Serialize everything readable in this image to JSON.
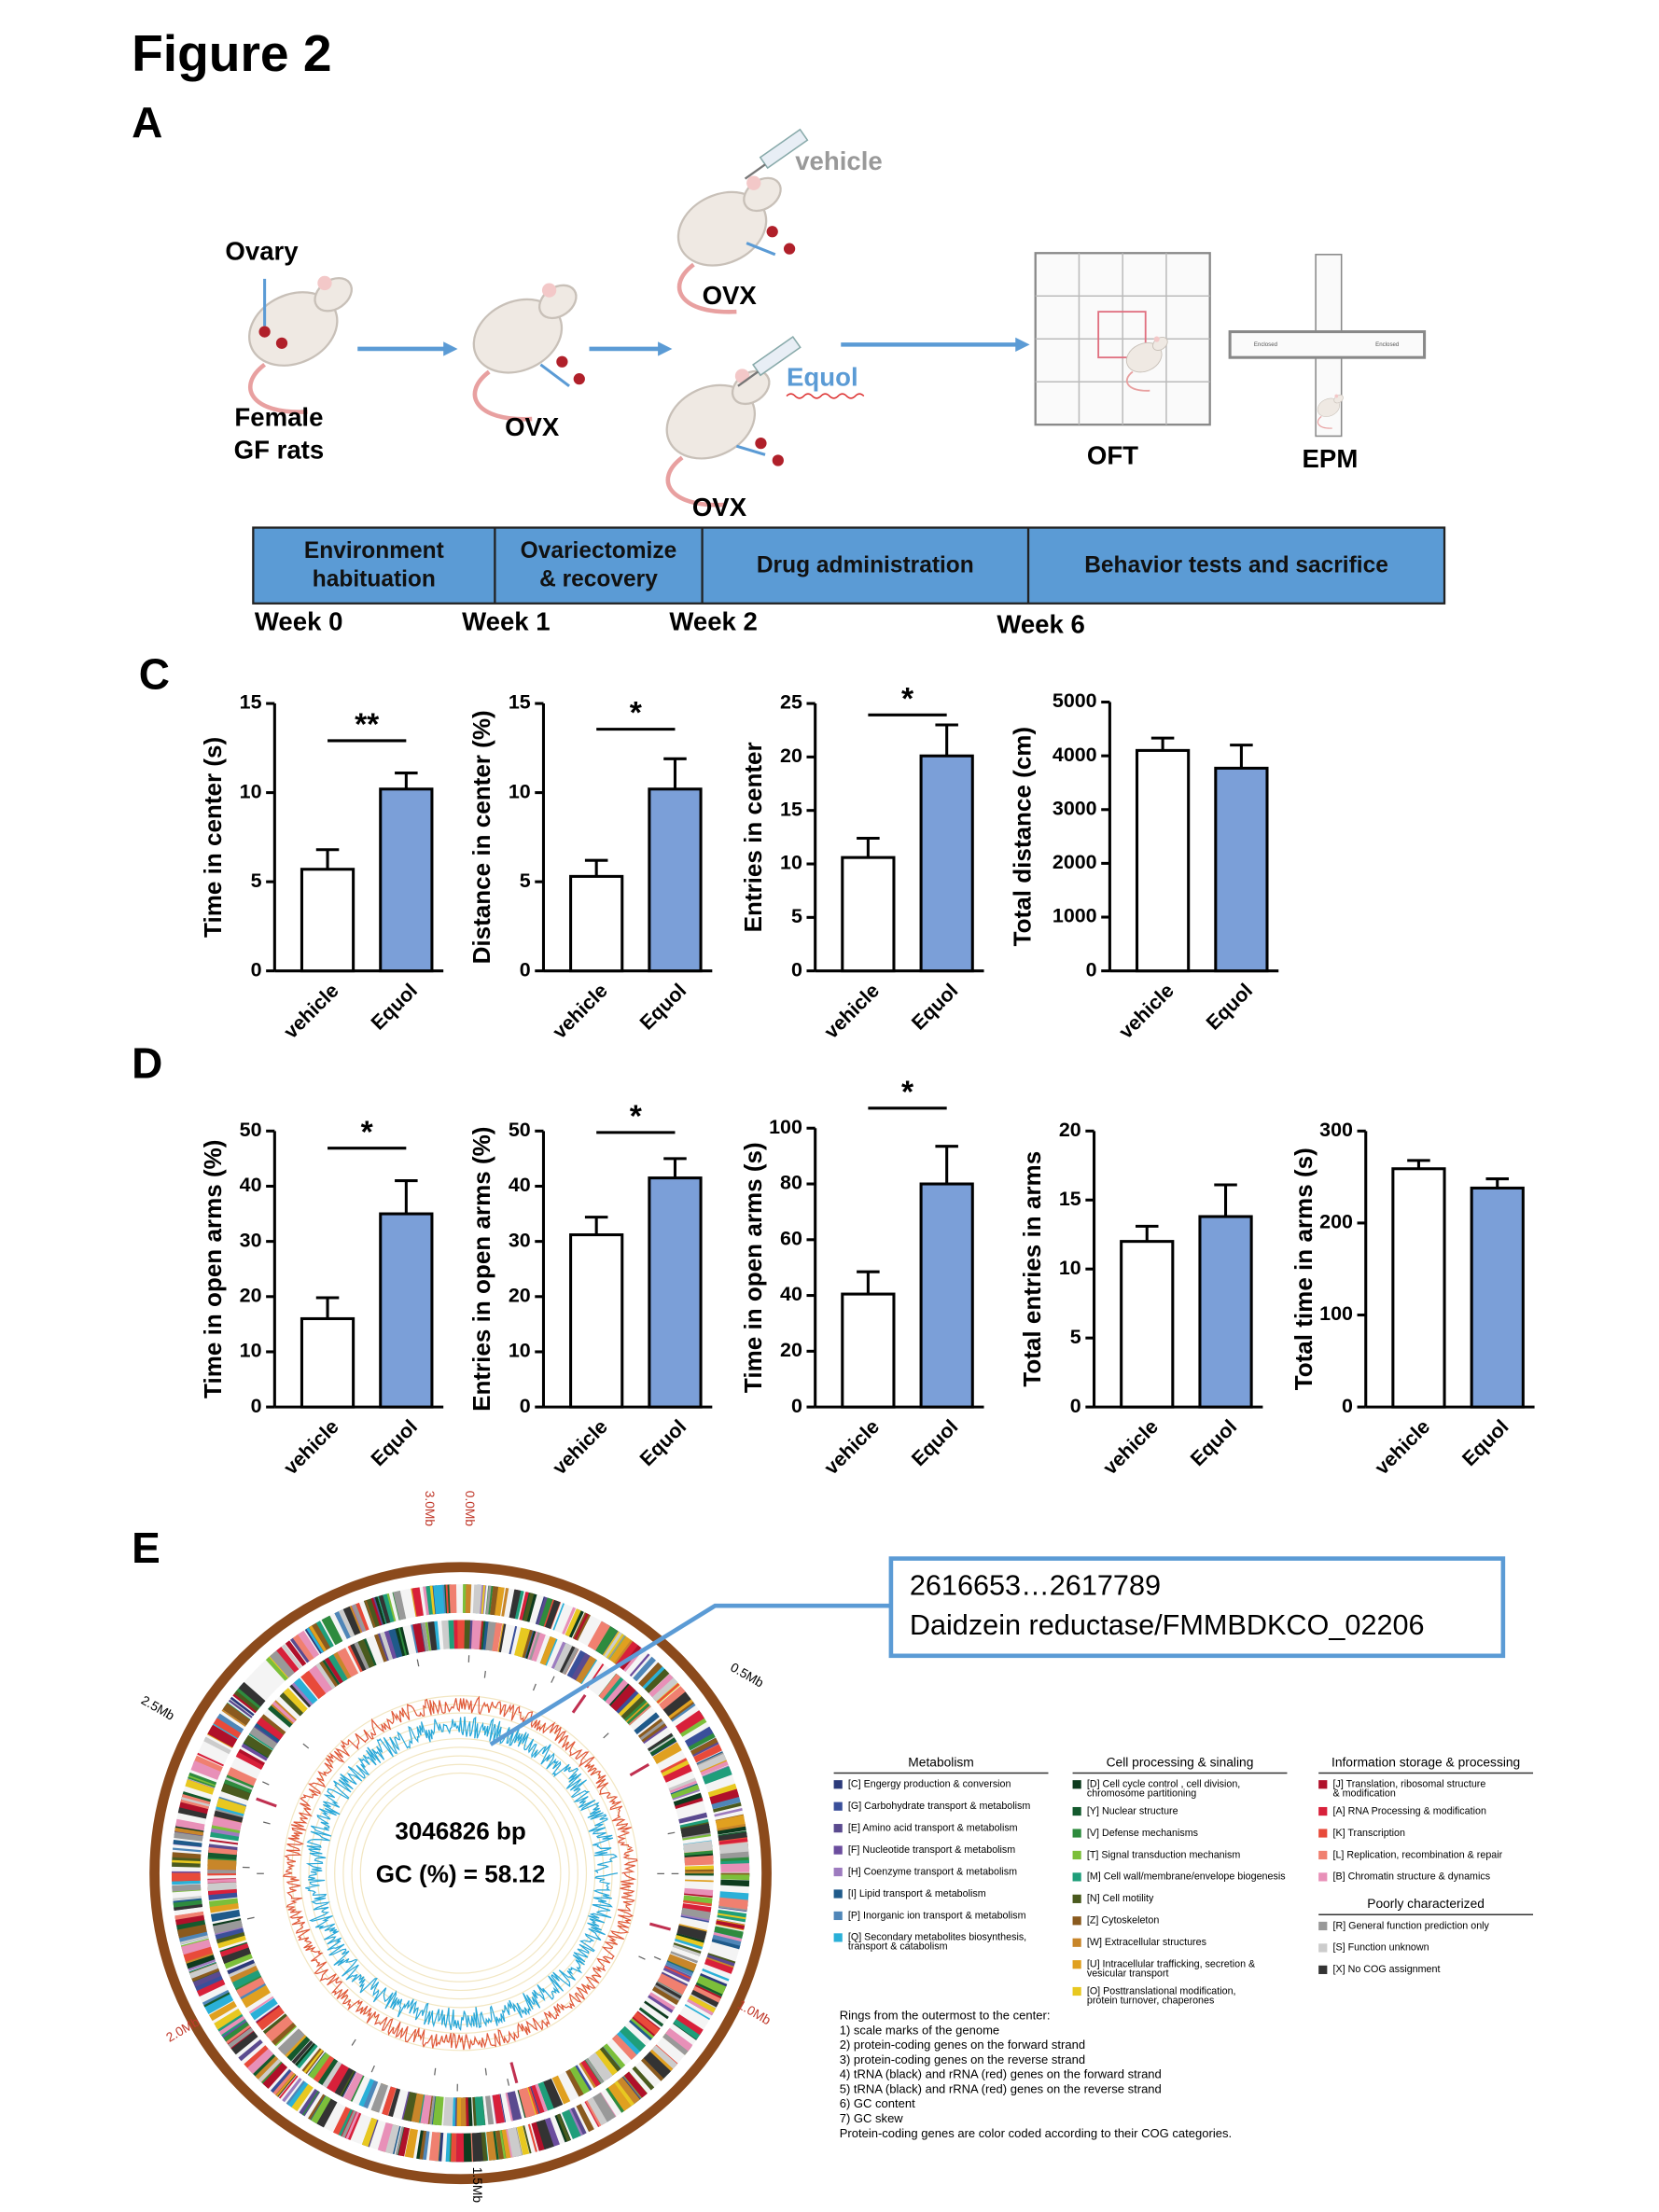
{
  "figure_title": "Figure 2",
  "panel_labels": [
    "A",
    "C",
    "D",
    "E"
  ],
  "diagram": {
    "ovary": "Ovary",
    "female": [
      "Female",
      "GF rats"
    ],
    "ovx": [
      "OVX",
      "OVX",
      "OVX"
    ],
    "vehicle": "vehicle",
    "equol": "Equol",
    "oft": "OFT",
    "epm": "EPM",
    "epm_arms": [
      "Enclosed",
      "Enclosed"
    ]
  },
  "timeline": {
    "phases": [
      [
        "Environment",
        "habituation"
      ],
      [
        "Ovariectomize",
        "& recovery"
      ],
      [
        "Drug administration"
      ],
      [
        "Behavior tests and sacrifice"
      ]
    ],
    "weeks": [
      "Week 0",
      "Week 1",
      "Week 2",
      "Week 6"
    ]
  },
  "chart_data": [
    {
      "type": "bar",
      "ylabel": "Time in center (s)",
      "categories": [
        "vehicle",
        "Equol"
      ],
      "values": [
        5.7,
        10.2
      ],
      "errors": [
        1.1,
        0.9
      ],
      "colors": [
        "#ffffff",
        "#7b9fd8"
      ],
      "ylim": [
        0,
        15
      ],
      "yticks": [
        0,
        5,
        10,
        15
      ],
      "significance": "**"
    },
    {
      "type": "bar",
      "ylabel": "Distance in center (%)",
      "categories": [
        "vehicle",
        "Equol"
      ],
      "values": [
        5.3,
        10.2
      ],
      "errors": [
        0.9,
        1.7
      ],
      "colors": [
        "#ffffff",
        "#7b9fd8"
      ],
      "ylim": [
        0,
        15
      ],
      "yticks": [
        0,
        5,
        10,
        15
      ],
      "significance": "*"
    },
    {
      "type": "bar",
      "ylabel": "Entries in center",
      "categories": [
        "vehicle",
        "Equol"
      ],
      "values": [
        10.6,
        20.1
      ],
      "errors": [
        1.8,
        2.9
      ],
      "colors": [
        "#ffffff",
        "#7b9fd8"
      ],
      "ylim": [
        0,
        25
      ],
      "yticks": [
        0,
        5,
        10,
        15,
        20,
        25
      ],
      "significance": "*"
    },
    {
      "type": "bar",
      "ylabel": "Total distance (cm)",
      "categories": [
        "vehicle",
        "Equol"
      ],
      "values": [
        4100,
        3770
      ],
      "errors": [
        230,
        430
      ],
      "colors": [
        "#ffffff",
        "#7b9fd8"
      ],
      "ylim": [
        0,
        5000
      ],
      "yticks": [
        0,
        1000,
        2000,
        3000,
        4000,
        5000
      ]
    },
    {
      "type": "bar",
      "ylabel": "Time in open arms (%)",
      "categories": [
        "vehicle",
        "Equol"
      ],
      "values": [
        16,
        35
      ],
      "errors": [
        3.8,
        6
      ],
      "colors": [
        "#ffffff",
        "#7b9fd8"
      ],
      "ylim": [
        0,
        50
      ],
      "yticks": [
        0,
        10,
        20,
        30,
        40,
        50
      ],
      "significance": "*"
    },
    {
      "type": "bar",
      "ylabel": "Entries in open arms (%)",
      "categories": [
        "vehicle",
        "Equol"
      ],
      "values": [
        31.2,
        41.5
      ],
      "errors": [
        3.2,
        3.5
      ],
      "colors": [
        "#ffffff",
        "#7b9fd8"
      ],
      "ylim": [
        0,
        50
      ],
      "yticks": [
        0,
        10,
        20,
        30,
        40,
        50
      ],
      "significance": "*"
    },
    {
      "type": "bar",
      "ylabel": "Time in open arms (s)",
      "categories": [
        "vehicle",
        "Equol"
      ],
      "values": [
        40.5,
        80
      ],
      "errors": [
        8,
        13.5
      ],
      "colors": [
        "#ffffff",
        "#7b9fd8"
      ],
      "ylim": [
        0,
        100
      ],
      "yticks": [
        0,
        20,
        40,
        60,
        80,
        100
      ],
      "significance": "*"
    },
    {
      "type": "bar",
      "ylabel": "Total  entries in arms",
      "categories": [
        "vehicle",
        "Equol"
      ],
      "values": [
        12,
        13.8
      ],
      "errors": [
        1.1,
        2.3
      ],
      "colors": [
        "#ffffff",
        "#7b9fd8"
      ],
      "ylim": [
        0,
        20
      ],
      "yticks": [
        0,
        5,
        10,
        15,
        20
      ]
    },
    {
      "type": "bar",
      "ylabel": "Total time in arms (s)",
      "categories": [
        "vehicle",
        "Equol"
      ],
      "values": [
        259,
        238
      ],
      "errors": [
        9,
        10
      ],
      "colors": [
        "#ffffff",
        "#7b9fd8"
      ],
      "ylim": [
        0,
        300
      ],
      "yticks": [
        0,
        100,
        200,
        300
      ]
    }
  ],
  "genome": {
    "scale_labels": [
      "0.0Mb",
      "0.5Mb",
      "1.0Mb",
      "1.5Mb",
      "2.0Mb",
      "2.5Mb",
      "3.0Mb"
    ],
    "size": "3046826 bp",
    "gc": "GC (%) = 58.12",
    "callout": [
      "2616653…2617789",
      "Daidzein reductase/FMMBDKCO_02206"
    ],
    "legend": [
      {
        "title": "Metabolism",
        "items": [
          {
            "label": [
              "[C] Engergy production & conversion"
            ],
            "color": "#2b3a7a"
          },
          {
            "label": [
              "[G] Carbohydrate transport & metabolism"
            ],
            "color": "#3a4f9a"
          },
          {
            "label": [
              "[E] Amino acid transport & metabolism"
            ],
            "color": "#5a4a8f"
          },
          {
            "label": [
              "[F] Nucleotide transport & metabolism"
            ],
            "color": "#6b4d9e"
          },
          {
            "label": [
              "[H] Coenzyme transport & metabolism"
            ],
            "color": "#9d7bbf"
          },
          {
            "label": [
              "[I] Lipid transport & metabolism"
            ],
            "color": "#1f5a8a"
          },
          {
            "label": [
              "[P] Inorganic ion transport & metabolism"
            ],
            "color": "#4f86b8"
          },
          {
            "label": [
              "[Q] Secondary metabolites biosynthesis,",
              "transport & catabolism"
            ],
            "color": "#2ab0d8"
          }
        ]
      },
      {
        "title": "Cell processing & sinaling",
        "items": [
          {
            "label": [
              "[D] Cell cycle control , cell division,",
              "chromosome partitioning"
            ],
            "color": "#0d3b1e"
          },
          {
            "label": [
              "[Y] Nuclear structure"
            ],
            "color": "#145a2e"
          },
          {
            "label": [
              "[V] Defense mechanisms"
            ],
            "color": "#2e8b3e"
          },
          {
            "label": [
              "[T] Signal transduction mechanism"
            ],
            "color": "#7cbf3a"
          },
          {
            "label": [
              "[M] Cell wall/membrane/envelope biogenesis"
            ],
            "color": "#1f9e7a"
          },
          {
            "label": [
              "[N] Cell motility"
            ],
            "color": "#4a5a1e"
          },
          {
            "label": [
              "[Z] Cytoskeleton"
            ],
            "color": "#8a5a1e"
          },
          {
            "label": [
              "[W] Extracellular structures"
            ],
            "color": "#c8862a"
          },
          {
            "label": [
              "[U] Intracellular trafficking, secretion &",
              "vesicular transport"
            ],
            "color": "#e0a020"
          },
          {
            "label": [
              "[O] Posttranslational modification,",
              "protein turnover, chaperones"
            ],
            "color": "#e8c820"
          }
        ]
      },
      {
        "title": "Information storage & processing",
        "items": [
          {
            "label": [
              "[J] Translation, ribosomal structure",
              "& modification"
            ],
            "color": "#b0102a"
          },
          {
            "label": [
              "[A] RNA Processing & modification"
            ],
            "color": "#d8203a"
          },
          {
            "label": [
              "[K] Transcription"
            ],
            "color": "#e84a3a"
          },
          {
            "label": [
              "[L] Replication, recombination & repair"
            ],
            "color": "#f08070"
          },
          {
            "label": [
              "[B] Chromatin structure & dynamics"
            ],
            "color": "#e890b8"
          }
        ]
      },
      {
        "title": "Poorly characterized",
        "items": [
          {
            "label": [
              "[R] General function prediction only"
            ],
            "color": "#999999"
          },
          {
            "label": [
              "[S] Function unknown"
            ],
            "color": "#cccccc"
          },
          {
            "label": [
              "[X] No COG assignment"
            ],
            "color": "#333333"
          }
        ]
      }
    ],
    "rings": [
      "Rings from the outermost to the center:",
      "1) scale marks of the genome",
      "2) protein-coding genes on the forward strand",
      "3) protein-coding genes on the reverse strand",
      "4) tRNA (black) and rRNA (red) genes on the forward strand",
      "5) tRNA (black) and rRNA (red) genes on the reverse strand",
      "6) GC content",
      "7) GC skew",
      "Protein-coding genes are color coded according to their COG categories."
    ]
  }
}
